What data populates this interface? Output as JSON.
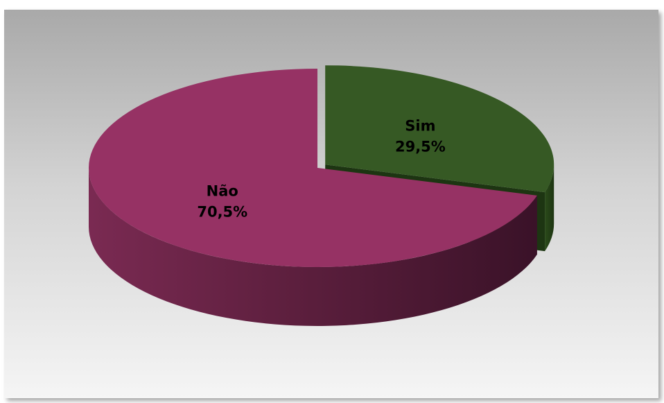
{
  "chart_data": {
    "type": "pie",
    "title": "",
    "slices": [
      {
        "label": "Sim",
        "value": 29.5,
        "value_label": "29,5%",
        "color": "#365924"
      },
      {
        "label": "Não",
        "value": 70.5,
        "value_label": "70,5%",
        "color": "#963264"
      }
    ],
    "exploded": "Sim",
    "style": "3d",
    "legend": "none"
  }
}
